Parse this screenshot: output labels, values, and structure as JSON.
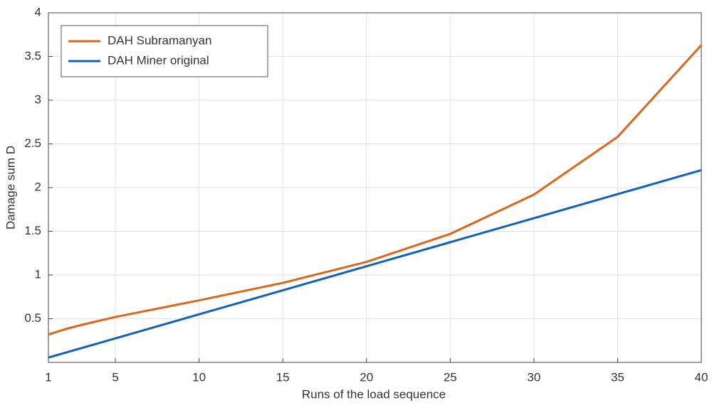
{
  "chart_data": {
    "type": "line",
    "x_label": "Runs of the load sequence",
    "y_label": "Damage sum D",
    "x": [
      1,
      2,
      3,
      5,
      10,
      15,
      20,
      25,
      30,
      35,
      40
    ],
    "series": [
      {
        "name": "DAH Subramanyan",
        "color": "#d9671e",
        "values": [
          0.32,
          0.38,
          0.43,
          0.52,
          0.71,
          0.91,
          1.15,
          1.47,
          1.92,
          2.58,
          3.63
        ]
      },
      {
        "name": "DAH Miner original",
        "color": "#0f62b8",
        "values": [
          0.055,
          0.11,
          0.165,
          0.275,
          0.55,
          0.825,
          1.1,
          1.375,
          1.65,
          1.925,
          2.2
        ]
      }
    ],
    "xlim": [
      1,
      40
    ],
    "xticks": [
      1,
      5,
      10,
      15,
      20,
      25,
      30,
      35,
      40
    ],
    "ylim": [
      0,
      4
    ],
    "yticks": [
      0.5,
      1,
      1.5,
      2,
      2.5,
      3,
      3.5,
      4
    ],
    "grid": true,
    "legend": "upper left"
  }
}
